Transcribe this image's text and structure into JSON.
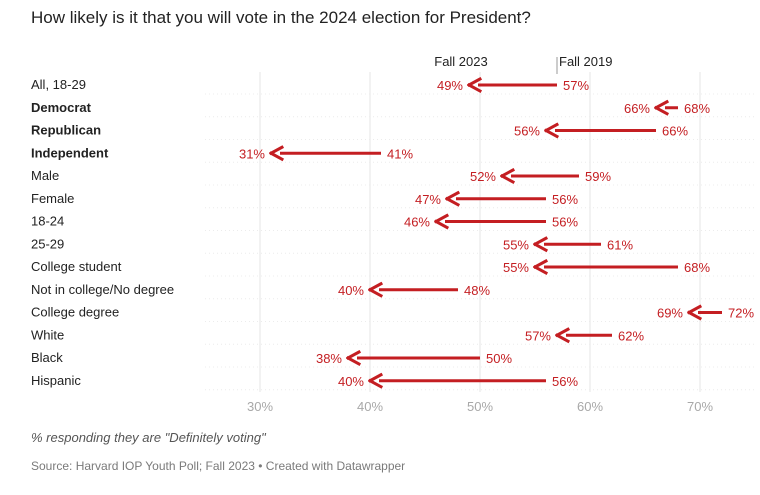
{
  "title": "How likely is it that you will vote in the 2024 election for President?",
  "note": "% responding they are \"Definitely voting\"",
  "source": "Source: Harvard IOP Youth Poll; Fall 2023 • Created with Datawrapper",
  "colors": {
    "arrow": "#c41e22",
    "grid": "#e6e6e6",
    "tick": "#a8a8a8",
    "label": "#222222"
  },
  "chart_data": {
    "type": "arrow",
    "title": "How likely is it that you will vote in the 2024 election for President?",
    "xlim": [
      25,
      75
    ],
    "x_ticks": [
      {
        "value": 30,
        "label": "30%"
      },
      {
        "value": 40,
        "label": "40%"
      },
      {
        "value": 50,
        "label": "50%"
      },
      {
        "value": 60,
        "label": "60%"
      },
      {
        "value": 70,
        "label": "70%"
      }
    ],
    "grid": true,
    "series_labels": [
      {
        "name": "Fall 2023",
        "anchor": 49
      },
      {
        "name": "Fall 2019",
        "anchor": 57
      }
    ],
    "rows": [
      {
        "label": "All, 18-29",
        "bold": false,
        "from": 57,
        "to": 49,
        "from_label": "57%",
        "to_label": "49%"
      },
      {
        "label": "Democrat",
        "bold": true,
        "from": 68,
        "to": 66,
        "from_label": "68%",
        "to_label": "66%"
      },
      {
        "label": "Republican",
        "bold": true,
        "from": 66,
        "to": 56,
        "from_label": "66%",
        "to_label": "56%"
      },
      {
        "label": "Independent",
        "bold": true,
        "from": 41,
        "to": 31,
        "from_label": "41%",
        "to_label": "31%"
      },
      {
        "label": "Male",
        "bold": false,
        "from": 59,
        "to": 52,
        "from_label": "59%",
        "to_label": "52%"
      },
      {
        "label": "Female",
        "bold": false,
        "from": 56,
        "to": 47,
        "from_label": "56%",
        "to_label": "47%"
      },
      {
        "label": "18-24",
        "bold": false,
        "from": 56,
        "to": 46,
        "from_label": "56%",
        "to_label": "46%"
      },
      {
        "label": "25-29",
        "bold": false,
        "from": 61,
        "to": 55,
        "from_label": "61%",
        "to_label": "55%"
      },
      {
        "label": "College student",
        "bold": false,
        "from": 68,
        "to": 55,
        "from_label": "68%",
        "to_label": "55%"
      },
      {
        "label": "Not in college/No degree",
        "bold": false,
        "from": 48,
        "to": 40,
        "from_label": "48%",
        "to_label": "40%"
      },
      {
        "label": "College degree",
        "bold": false,
        "from": 72,
        "to": 69,
        "from_label": "72%",
        "to_label": "69%"
      },
      {
        "label": "White",
        "bold": false,
        "from": 62,
        "to": 57,
        "from_label": "62%",
        "to_label": "57%"
      },
      {
        "label": "Black",
        "bold": false,
        "from": 50,
        "to": 38,
        "from_label": "50%",
        "to_label": "38%"
      },
      {
        "label": "Hispanic",
        "bold": false,
        "from": 56,
        "to": 40,
        "from_label": "56%",
        "to_label": "40%"
      }
    ]
  }
}
